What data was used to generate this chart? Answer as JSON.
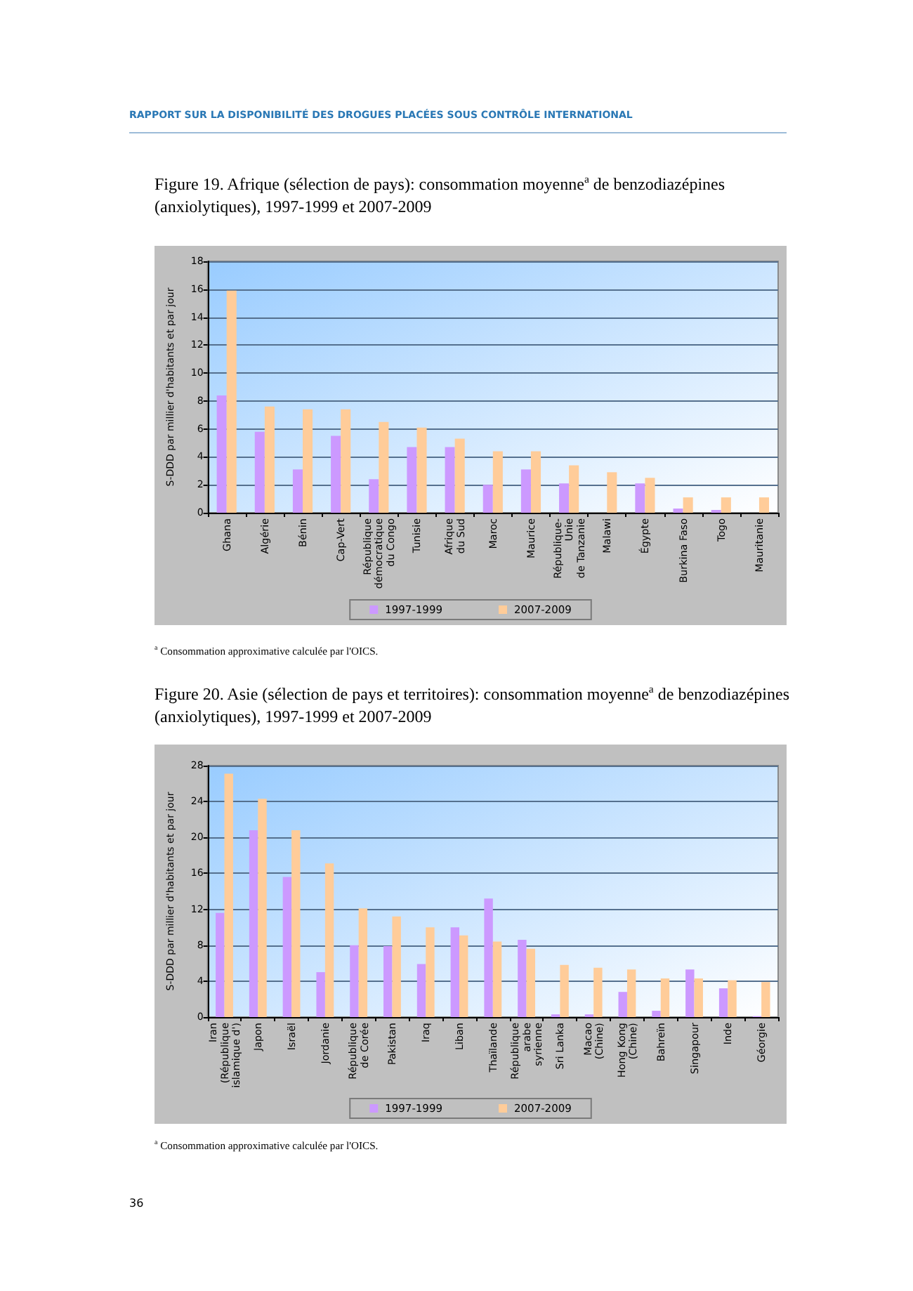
{
  "chart_data": [
    {
      "type": "bar",
      "title": "Figure 19. Afrique (sélection de pays): consommation moyenne$^{a}$ de benzodiazépines (anxiolytiques), 1997-1999 et 2007-2009",
      "ylabel": "S-DDD par millier d'habitants et par jour",
      "categories": [
        "Ghana",
        "Algérie",
        "Bénin",
        "Cap-Vert",
        "République démocratique du Congo",
        "Tunisie",
        "Afrique du Sud",
        "Maroc",
        "Maurice",
        "République-Unie de Tanzanie",
        "Malawi",
        "Égypte",
        "Burkina Faso",
        "Togo",
        "Mauritanie"
      ],
      "series": [
        {
          "name": "1997-1999",
          "color": "#cc99ff",
          "values": [
            8.4,
            5.8,
            3.1,
            5.5,
            2.4,
            4.7,
            4.7,
            2.0,
            3.1,
            2.1,
            null,
            2.1,
            0.3,
            0.2,
            null
          ]
        },
        {
          "name": "2007-2009",
          "color": "#ffcc99",
          "values": [
            15.9,
            7.6,
            7.4,
            7.4,
            6.5,
            6.1,
            5.3,
            4.4,
            4.4,
            3.4,
            2.9,
            2.5,
            1.1,
            1.1,
            1.1
          ]
        }
      ],
      "ylim": [
        0,
        18
      ],
      "yticks": [
        0,
        2,
        4,
        6,
        8,
        10,
        12,
        14,
        16,
        18
      ],
      "grid": "y",
      "legend": "bottom",
      "annotations": [
        "RAPPORT SUR LA DISPONIBILITÉ DES DROGUES PLACÉES SOUS CONTRÔLE INTERNATIONAL",
        "$^{a}$ Consommation approximative calculée par l'OICS."
      ]
    },
    {
      "type": "bar",
      "title": "Figure 20. Asie (sélection de pays et territoires): consommation moyenne$^{a}$ de benzodiazépines (anxiolytiques), 1997-1999 et 2007-2009",
      "ylabel": "S-DDD par millier d'habitants et par jour",
      "categories": [
        "Iran (République islamique d')",
        "Japon",
        "Israël",
        "Jordanie",
        "République de Corée",
        "Pakistan",
        "Iraq",
        "Liban",
        "Thaïlande",
        "République arabe syrienne",
        "Sri Lanka",
        "Macao (Chine)",
        "Hong Kong (Chine)",
        "Bahreïn",
        "Singapour",
        "Inde",
        "Géorgie"
      ],
      "series": [
        {
          "name": "1997-1999",
          "color": "#cc99ff",
          "values": [
            11.6,
            20.8,
            15.6,
            5.0,
            8.0,
            7.9,
            5.9,
            10.0,
            13.2,
            8.6,
            0.3,
            0.3,
            2.8,
            0.7,
            5.3,
            3.2,
            0.1
          ]
        },
        {
          "name": "2007-2009",
          "color": "#ffcc99",
          "values": [
            27.1,
            24.3,
            20.8,
            17.1,
            12.1,
            11.2,
            10.0,
            9.1,
            8.4,
            7.6,
            5.8,
            5.5,
            5.3,
            4.3,
            4.3,
            4.1,
            3.9
          ]
        }
      ],
      "ylim": [
        0,
        28
      ],
      "yticks": [
        0,
        4,
        8,
        12,
        16,
        20,
        24,
        28
      ],
      "grid": "y",
      "legend": "bottom",
      "annotations": [
        "$^{a}$ Consommation approximative calculée par l'OICS.",
        "36"
      ]
    }
  ]
}
